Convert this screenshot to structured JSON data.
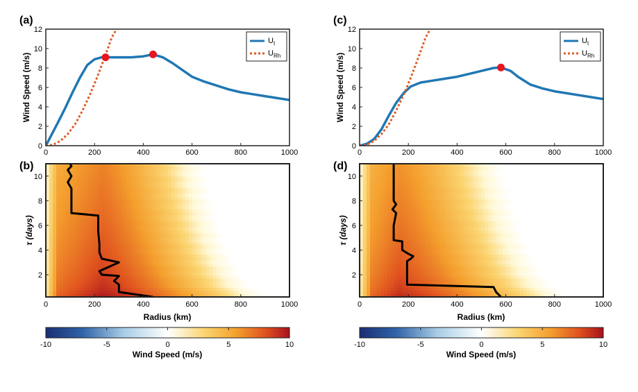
{
  "chart_data": [
    {
      "panel": "(a)",
      "type": "line",
      "xlabel": "",
      "ylabel": "Wind Speed (m/s)",
      "xlim": [
        0,
        1000
      ],
      "ylim": [
        0,
        12
      ],
      "xticks": [
        "0",
        "200",
        "400",
        "600",
        "800",
        "1000"
      ],
      "yticks": [
        "0",
        "2",
        "4",
        "6",
        "8",
        "10",
        "12"
      ],
      "legend": {
        "placement": "top-right",
        "entries": [
          {
            "main": "U",
            "sub": "t"
          },
          {
            "main": "U",
            "sub": "Rh"
          }
        ]
      },
      "series": [
        {
          "key": "ut",
          "style": "solid",
          "color": "#1f77b4",
          "x": [
            0,
            25,
            50,
            80,
            110,
            140,
            170,
            200,
            230,
            260,
            300,
            350,
            400,
            440,
            480,
            520,
            560,
            600,
            650,
            700,
            750,
            800,
            850,
            900,
            950,
            1000
          ],
          "y": [
            0,
            1.2,
            2.4,
            3.9,
            5.5,
            7.0,
            8.3,
            8.9,
            9.1,
            9.1,
            9.1,
            9.1,
            9.2,
            9.4,
            9.1,
            8.5,
            7.8,
            7.1,
            6.6,
            6.2,
            5.8,
            5.5,
            5.3,
            5.1,
            4.9,
            4.7
          ]
        },
        {
          "key": "urh",
          "style": "dotted",
          "color": "#e05a24",
          "x": [
            0,
            30,
            60,
            90,
            120,
            150,
            180,
            210,
            240,
            270,
            290
          ],
          "y": [
            0,
            0.1,
            0.5,
            1.2,
            2.2,
            3.6,
            5.2,
            7.0,
            9.0,
            11.1,
            12.5
          ]
        }
      ],
      "markers": [
        {
          "x": 245,
          "y": 9.1
        },
        {
          "x": 440,
          "y": 9.4
        }
      ]
    },
    {
      "panel": "(b)",
      "type": "heatmap",
      "xlabel": "Radius (km)",
      "ylabel": "τ (days)",
      "xlim": [
        0,
        1000
      ],
      "ylim": [
        0.2,
        11
      ],
      "xticks": [
        "0",
        "200",
        "400",
        "600",
        "800",
        "1000"
      ],
      "yticks": [
        "2",
        "4",
        "6",
        "8",
        "10"
      ],
      "field": {
        "core_radius": 230,
        "front_top": 640,
        "front_bottom": 980,
        "amp_top": 6.5,
        "amp_bottom": 10
      },
      "path": {
        "x": [
          440,
          300,
          300,
          280,
          300,
          230,
          220,
          300,
          230,
          220,
          220,
          215,
          215,
          105,
          105,
          105,
          90,
          105,
          90,
          105,
          100
        ],
        "y": [
          0.2,
          0.6,
          1.2,
          1.5,
          1.9,
          2.0,
          2.3,
          3.0,
          3.3,
          3.8,
          4.5,
          5.5,
          6.8,
          7.0,
          8.0,
          9.0,
          9.5,
          10.0,
          10.5,
          10.8,
          11.0
        ]
      }
    },
    {
      "panel": "(c)",
      "type": "line",
      "xlabel": "",
      "ylabel": "Wind Speed (m/s)",
      "xlim": [
        0,
        1000
      ],
      "ylim": [
        0,
        12
      ],
      "xticks": [
        "0",
        "200",
        "400",
        "600",
        "800",
        "1000"
      ],
      "yticks": [
        "0",
        "2",
        "4",
        "6",
        "8",
        "10",
        "12"
      ],
      "legend": {
        "placement": "top-right",
        "entries": [
          {
            "main": "U",
            "sub": "t"
          },
          {
            "main": "U",
            "sub": "Rh"
          }
        ]
      },
      "series": [
        {
          "key": "ut",
          "style": "solid",
          "color": "#1f77b4",
          "x": [
            0,
            30,
            60,
            90,
            120,
            150,
            180,
            210,
            250,
            300,
            350,
            400,
            450,
            500,
            550,
            580,
            620,
            650,
            700,
            750,
            800,
            850,
            900,
            950,
            1000
          ],
          "y": [
            0,
            0.2,
            0.7,
            1.7,
            3.1,
            4.4,
            5.4,
            6.1,
            6.5,
            6.7,
            6.9,
            7.1,
            7.4,
            7.7,
            8.0,
            8.05,
            7.7,
            7.1,
            6.3,
            5.9,
            5.6,
            5.4,
            5.2,
            5.0,
            4.8
          ]
        },
        {
          "key": "urh",
          "style": "dotted",
          "color": "#e05a24",
          "x": [
            0,
            30,
            60,
            90,
            120,
            150,
            180,
            210,
            240,
            270,
            290
          ],
          "y": [
            0,
            0.1,
            0.5,
            1.2,
            2.2,
            3.6,
            5.2,
            7.0,
            9.0,
            11.1,
            12.5
          ]
        }
      ],
      "markers": [
        {
          "x": 580,
          "y": 8.05
        }
      ]
    },
    {
      "panel": "(d)",
      "type": "heatmap",
      "xlabel": "Radius (km)",
      "ylabel": "τ (days)",
      "xlim": [
        0,
        1000
      ],
      "ylim": [
        0.2,
        11
      ],
      "xticks": [
        "0",
        "200",
        "400",
        "600",
        "800",
        "1000"
      ],
      "yticks": [
        "2",
        "4",
        "6",
        "8",
        "10"
      ],
      "field": {
        "core_radius": 160,
        "front_top": 580,
        "front_bottom": 940,
        "amp_top": 6.0,
        "amp_bottom": 9.5
      },
      "path": {
        "x": [
          580,
          560,
          550,
          195,
          195,
          195,
          195,
          210,
          220,
          200,
          175,
          175,
          140,
          140,
          150,
          135,
          150,
          140,
          140,
          140
        ],
        "y": [
          0.2,
          0.6,
          1.0,
          1.2,
          2.0,
          2.5,
          3.1,
          3.3,
          3.5,
          3.7,
          4.0,
          4.7,
          4.8,
          6.0,
          7.0,
          7.3,
          7.7,
          8.0,
          9.5,
          11.0
        ]
      }
    }
  ],
  "colorbars": [
    {
      "label": "Wind Speed (m/s)",
      "range": [
        -10,
        10
      ],
      "ticks": [
        "-10",
        "-5",
        "0",
        "5",
        "10"
      ]
    },
    {
      "label": "Wind Speed (m/s)",
      "range": [
        -10,
        10
      ],
      "ticks": [
        "-10",
        "-5",
        "0",
        "5",
        "10"
      ]
    }
  ],
  "colors": {
    "line": "#1f77b4",
    "dotted": "#e05a24",
    "marker": "#e8141e",
    "path": "#000000"
  }
}
